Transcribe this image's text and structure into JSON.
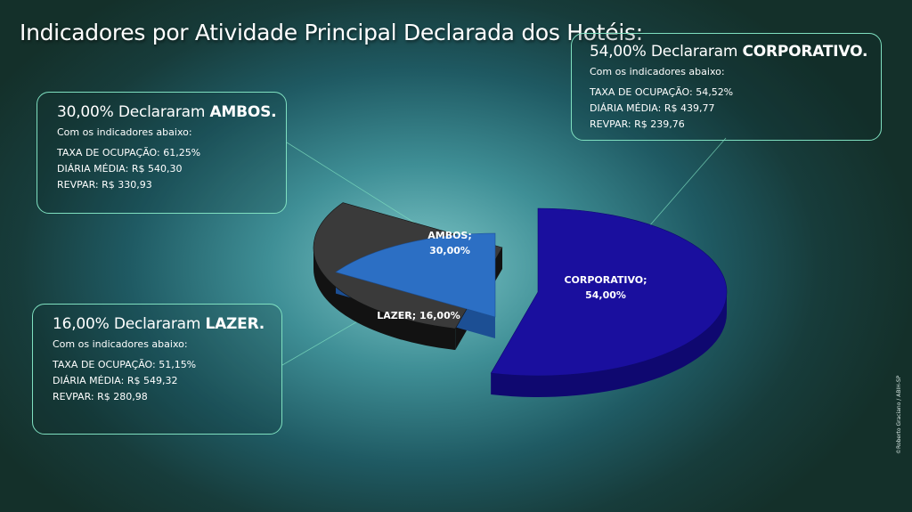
{
  "slide": {
    "title": "Indicadores por Atividade Principal Declarada dos Hotéis:",
    "credit": "©Roberto Graciano / ABIH-SP"
  },
  "callouts": {
    "corporativo": {
      "head_prefix": "54,00% Declararam ",
      "head_bold": "CORPORATIVO.",
      "sub": "Com os indicadores abaixo:",
      "taxa": "TAXA DE OCUPAÇÃO: 54,52%",
      "diaria": "DIÁRIA MÉDIA: R$ 439,77",
      "revpar": "REVPAR: R$ 239,76"
    },
    "ambos": {
      "head_prefix": "30,00% Declararam ",
      "head_bold": "AMBOS.",
      "sub": "Com os indicadores abaixo:",
      "taxa": "TAXA DE OCUPAÇÃO: 61,25%",
      "diaria": "DIÁRIA MÉDIA: R$ 540,30",
      "revpar": "REVPAR: R$ 330,93"
    },
    "lazer": {
      "head_prefix": "16,00% Declararam ",
      "head_bold": "LAZER.",
      "sub": "Com os indicadores abaixo:",
      "taxa": "TAXA DE OCUPAÇÃO: 51,15%",
      "diaria": "DIÁRIA MÉDIA: R$ 549,32",
      "revpar": "REVPAR: R$ 280,98"
    }
  },
  "chart_data": {
    "type": "pie",
    "style": "3d-exploded",
    "categories": [
      "CORPORATIVO",
      "AMBOS",
      "LAZER"
    ],
    "values": [
      54.0,
      30.0,
      16.0
    ],
    "data_labels": [
      [
        "CORPORATIVO;",
        "54,00%"
      ],
      [
        "AMBOS;",
        "30,00%"
      ],
      [
        "LAZER; 16,00%"
      ]
    ],
    "colors": [
      "#1a0f9e",
      "#3a3a3a",
      "#2c6fc4"
    ],
    "side_colors": [
      "#0f0870",
      "#121212",
      "#1c4f94"
    ],
    "legend": "none"
  },
  "colors": {
    "callout_border": "#7fe0c0",
    "text": "#ffffff"
  }
}
